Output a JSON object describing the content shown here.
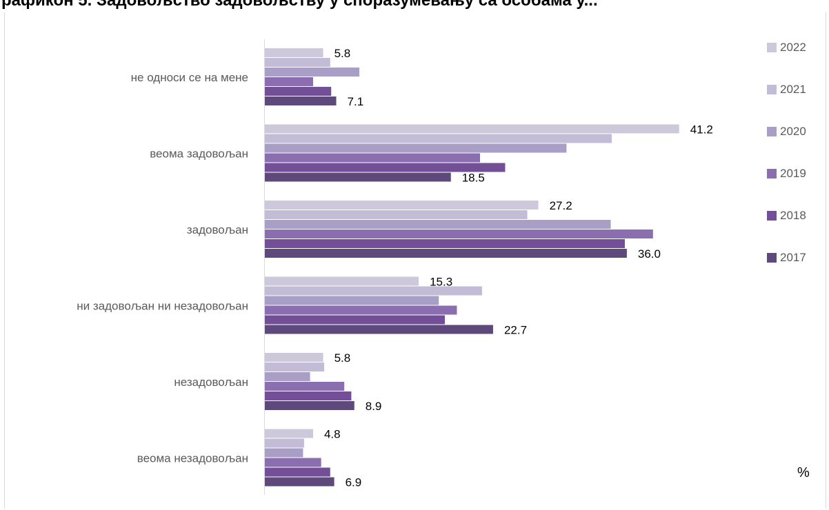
{
  "title_fragment": "рафикон 5. Задовољство задовољству у споразумевању са особама у...",
  "chart_data": {
    "type": "bar",
    "orientation": "horizontal",
    "unit": "%",
    "categories": [
      "не односи се на мене",
      "веома задовољан",
      "задовољан",
      "ни задовољан ни незадовољан",
      "незадовољан",
      "веома незадовољан"
    ],
    "series": [
      {
        "name": "2022",
        "color": "#cdc8da",
        "values": [
          5.8,
          41.2,
          27.2,
          15.3,
          5.8,
          4.8
        ]
      },
      {
        "name": "2021",
        "color": "#c2bcd6",
        "values": [
          6.5,
          34.5,
          26.1,
          21.6,
          5.9,
          3.9
        ]
      },
      {
        "name": "2020",
        "color": "#a99ec5",
        "values": [
          9.4,
          30.0,
          34.4,
          17.3,
          4.5,
          3.8
        ]
      },
      {
        "name": "2019",
        "color": "#8a6eaf",
        "values": [
          4.8,
          21.4,
          38.6,
          19.1,
          7.9,
          5.6
        ]
      },
      {
        "name": "2018",
        "color": "#734f98",
        "values": [
          6.6,
          23.9,
          35.8,
          17.9,
          8.6,
          6.5
        ]
      },
      {
        "name": "2017",
        "color": "#5d4a7a",
        "values": [
          7.1,
          18.5,
          36.0,
          22.7,
          8.9,
          6.9
        ]
      }
    ],
    "data_labels": {
      "2022": [
        "5.8",
        "41.2",
        "27.2",
        "15.3",
        "5.8",
        "4.8"
      ],
      "2017": [
        "7.1",
        "18.5",
        "36.0",
        "22.7",
        "8.9",
        "6.9"
      ]
    },
    "legend_order": [
      "2022",
      "2021",
      "2020",
      "2019",
      "2018",
      "2017"
    ],
    "legend_position": "right",
    "xlim": [
      0,
      45
    ],
    "grid": false
  }
}
